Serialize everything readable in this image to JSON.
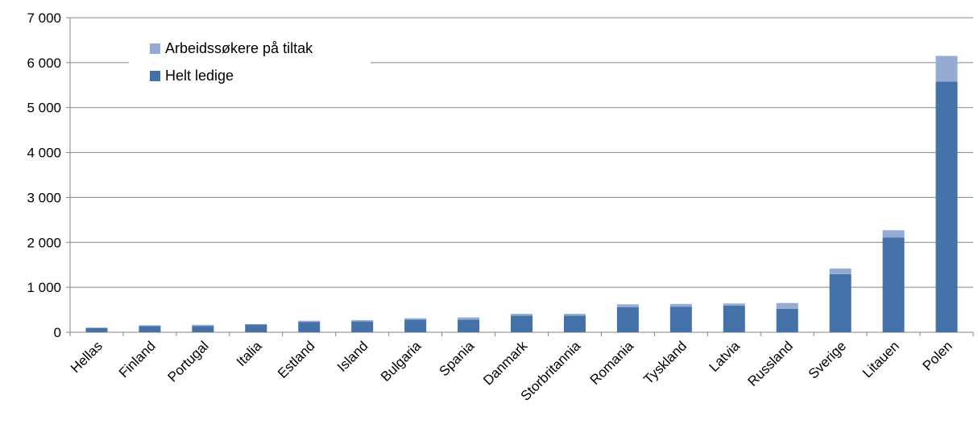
{
  "chart_data": {
    "type": "bar",
    "stacked": true,
    "categories": [
      "Hellas",
      "Finland",
      "Portugal",
      "Italia",
      "Estland",
      "Island",
      "Bulgaria",
      "Spania",
      "Danmark",
      "Storbritannia",
      "Romania",
      "Tyskland",
      "Latvia",
      "Russland",
      "Sverige",
      "Litauen",
      "Polen"
    ],
    "series": [
      {
        "name": "Helt ledige",
        "color": "#4472A8",
        "values": [
          90,
          140,
          140,
          170,
          230,
          240,
          280,
          280,
          370,
          370,
          560,
          570,
          590,
          520,
          1290,
          2110,
          5580
        ]
      },
      {
        "name": "Arbeidssøkere på tiltak",
        "color": "#95ABD2",
        "values": [
          15,
          15,
          25,
          10,
          25,
          30,
          30,
          50,
          40,
          40,
          60,
          60,
          50,
          130,
          130,
          160,
          570
        ]
      }
    ],
    "ylim": [
      0,
      7000
    ],
    "yticks": [
      0,
      1000,
      2000,
      3000,
      4000,
      5000,
      6000,
      7000
    ],
    "ytick_labels": [
      "0",
      "1 000",
      "2 000",
      "3 000",
      "4 000",
      "5 000",
      "6 000",
      "7 000"
    ],
    "title": "",
    "xlabel": "",
    "ylabel": "",
    "grid": true,
    "legend_position": "top-left"
  },
  "legend": {
    "items": [
      {
        "label": "Arbeidssøkere på tiltak",
        "color": "#95ABD2"
      },
      {
        "label": "Helt ledige",
        "color": "#4472A8"
      }
    ]
  }
}
